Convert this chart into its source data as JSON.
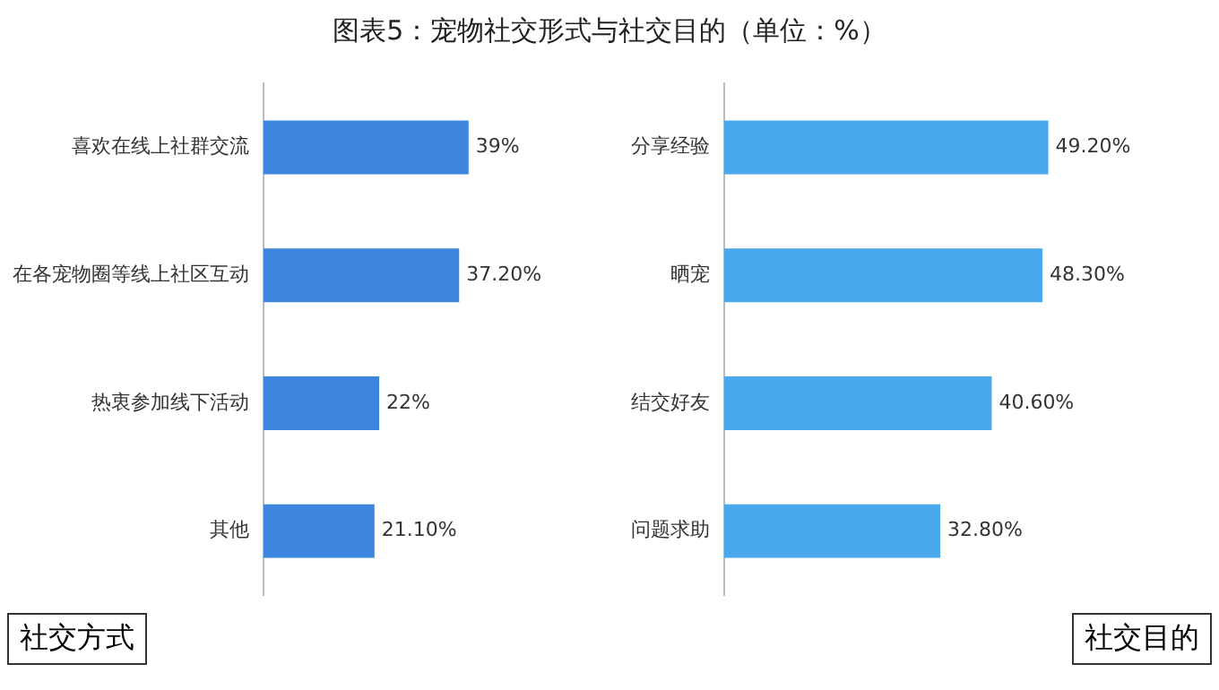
{
  "chart_data": [
    {
      "type": "bar",
      "orientation": "horizontal",
      "title": "图表5：宠物社交形式与社交目的（单位：%）",
      "categories": [
        "喜欢在线上社群交流",
        "在各宠物圈等线上社区互动",
        "热衷参加线下活动",
        "其他"
      ],
      "values": [
        39,
        37.2,
        22,
        21.1
      ],
      "value_labels": [
        "39%",
        "37.20%",
        "22%",
        "21.10%"
      ],
      "color": "#3d85de",
      "annotations": [
        "社交方式"
      ],
      "grid": false,
      "legend": false
    },
    {
      "type": "bar",
      "orientation": "horizontal",
      "categories": [
        "分享经验",
        "晒宠",
        "结交好友",
        "问题求助"
      ],
      "values": [
        49.2,
        48.3,
        40.6,
        32.8
      ],
      "value_labels": [
        "49.20%",
        "48.30%",
        "40.60%",
        "32.80%"
      ],
      "color": "#4aa9ec",
      "annotations": [
        "社交目的"
      ],
      "grid": false,
      "legend": false
    }
  ]
}
